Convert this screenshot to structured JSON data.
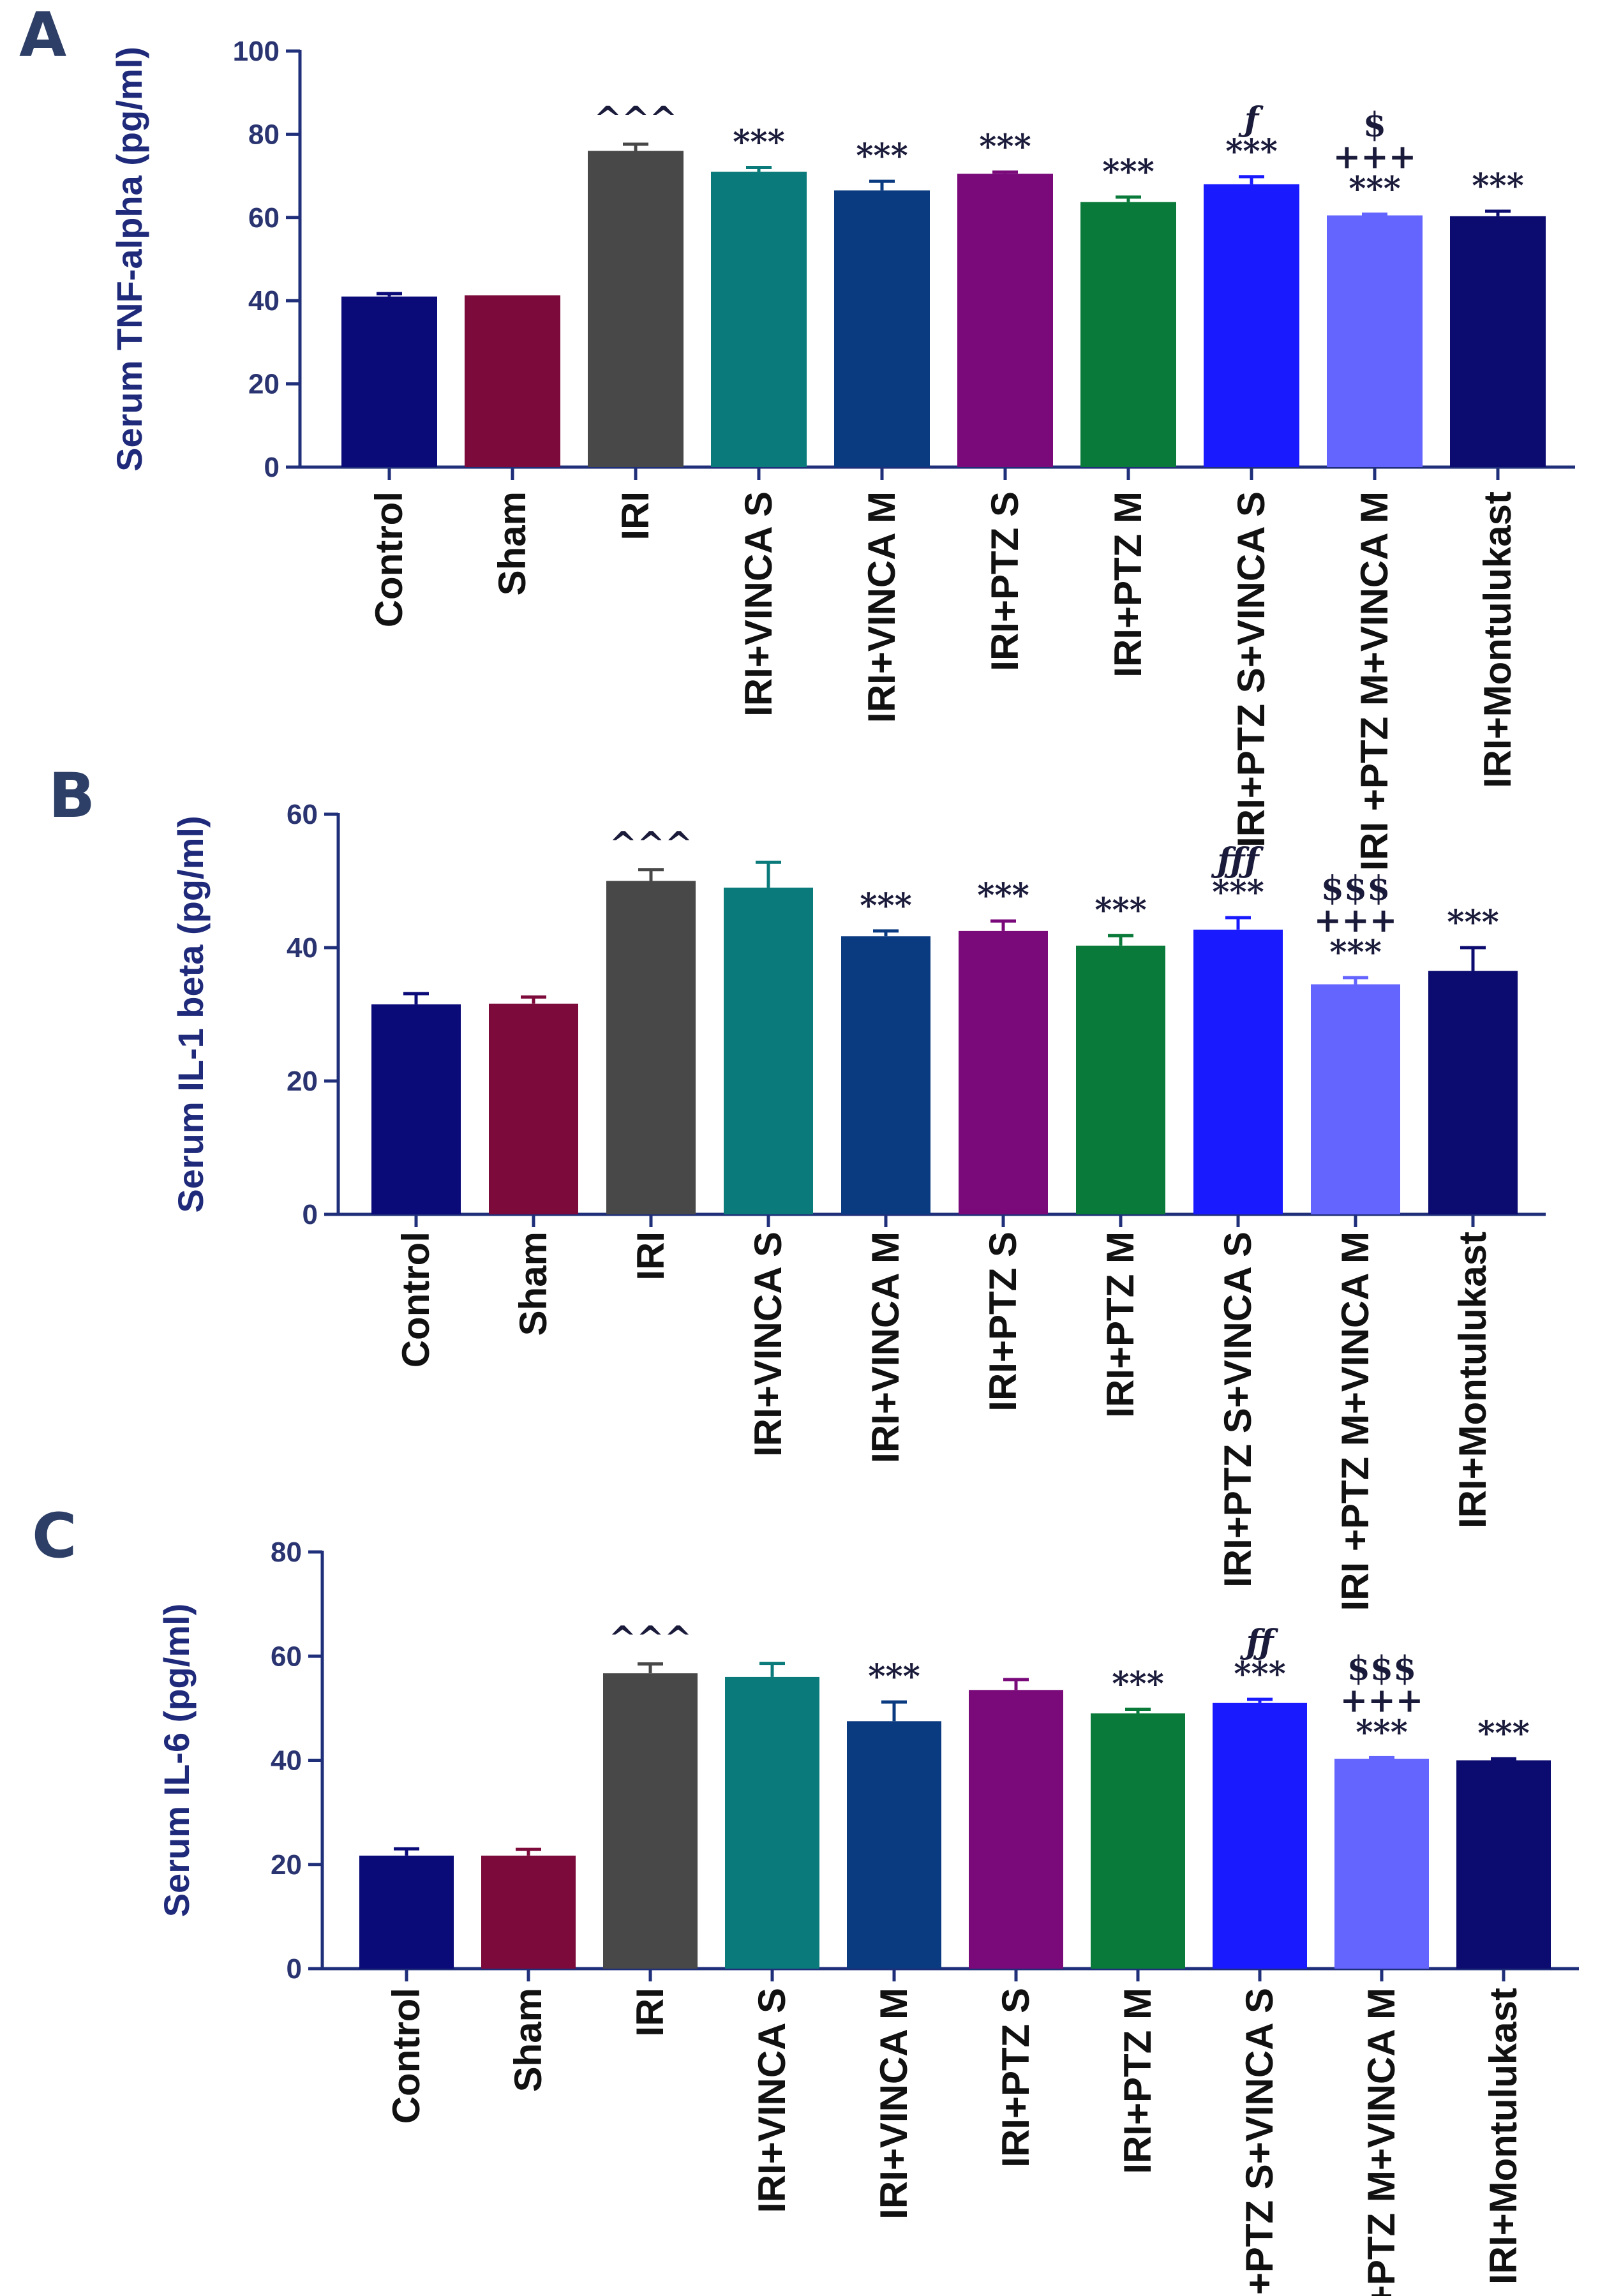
{
  "chart_data": [
    {
      "type": "bar",
      "panel_label": "A",
      "ylabel": "Serum TNF-alpha (pg/ml)",
      "ylim": [
        0,
        100
      ],
      "yticks": [
        0,
        20,
        40,
        60,
        80,
        100
      ],
      "categories": [
        "Control",
        "Sham",
        "IRI",
        "IRI+VINCA S",
        "IRI+VINCA M",
        "IRI+PTZ S",
        "IRI+PTZ M",
        "IRI+PTZ S+VINCA S",
        "IRI +PTZ M+VINCA M",
        "IRI+Montulukast"
      ],
      "values": [
        41,
        41.3,
        76,
        71,
        66.5,
        70.5,
        63.7,
        68,
        60.5,
        60.3
      ],
      "errors": [
        0.7,
        0,
        1.6,
        1,
        2.2,
        0.4,
        1.2,
        1.8,
        0.3,
        1.2
      ],
      "annotations": [
        [],
        [],
        [
          "^^^"
        ],
        [
          "***"
        ],
        [
          "***"
        ],
        [
          "***"
        ],
        [
          "***"
        ],
        [
          "***",
          "ƒ"
        ],
        [
          "***",
          "+++",
          "$"
        ],
        [
          "***"
        ]
      ]
    },
    {
      "type": "bar",
      "panel_label": "B",
      "ylabel": "Serum IL-1 beta (pg/ml)",
      "ylim": [
        0,
        60
      ],
      "yticks": [
        0,
        20,
        40,
        60
      ],
      "categories": [
        "Control",
        "Sham",
        "IRI",
        "IRI+VINCA S",
        "IRI+VINCA M",
        "IRI+PTZ S",
        "IRI+PTZ M",
        "IRI+PTZ S+VINCA S",
        "IRI +PTZ M+VINCA M",
        "IRI+Montulukast"
      ],
      "values": [
        31.5,
        31.6,
        50,
        49,
        41.7,
        42.5,
        40.3,
        42.7,
        34.5,
        36.5
      ],
      "errors": [
        1.6,
        1,
        1.7,
        3.8,
        0.8,
        1.5,
        1.5,
        1.8,
        1,
        3.5
      ],
      "annotations": [
        [],
        [],
        [
          "^^^"
        ],
        [],
        [
          "***"
        ],
        [
          "***"
        ],
        [
          "***"
        ],
        [
          "***",
          "ƒƒƒ"
        ],
        [
          "***",
          "+++",
          "$$$"
        ],
        [
          "***"
        ]
      ]
    },
    {
      "type": "bar",
      "panel_label": "C",
      "ylabel": "Serum IL-6 (pg/ml)",
      "ylim": [
        0,
        80
      ],
      "yticks": [
        0,
        20,
        40,
        60,
        80
      ],
      "categories": [
        "Control",
        "Sham",
        "IRI",
        "IRI+VINCA S",
        "IRI+VINCA M",
        "IRI+PTZ S",
        "IRI+PTZ M",
        "IRI+PTZ S+VINCA S",
        "IRI+PTZ M+VINCA M",
        "IRI+Montulukast"
      ],
      "values": [
        21.7,
        21.7,
        56.7,
        56,
        47.5,
        53.5,
        49,
        51,
        40.3,
        40
      ],
      "errors": [
        1.3,
        1.2,
        1.8,
        2.6,
        3.7,
        2,
        0.8,
        0.7,
        0.2,
        0.3
      ],
      "annotations": [
        [],
        [],
        [
          "^^^"
        ],
        [],
        [
          "***"
        ],
        [],
        [
          "***"
        ],
        [
          "***",
          "ƒƒ"
        ],
        [
          "***",
          "+++",
          "$$$"
        ],
        [
          "***"
        ]
      ]
    }
  ],
  "colors": [
    "#0a0a78",
    "#7c0a3a",
    "#484848",
    "#0b7a7a",
    "#0a3a80",
    "#7a0a7a",
    "#0a7a3a",
    "#1a1aff",
    "#6464ff",
    "#0c0c70"
  ]
}
